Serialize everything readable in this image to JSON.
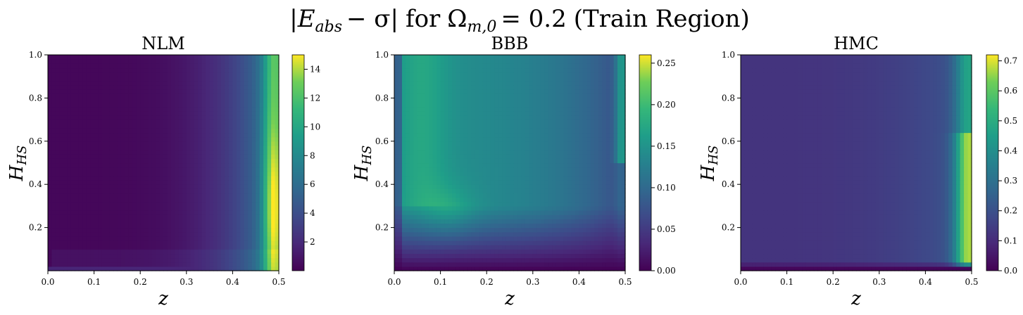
{
  "figure": {
    "title": "|Eabs − σ| for Ωm,0 = 0.2 (Train Region)",
    "title_parts": {
      "lead": "|",
      "e": "E",
      "e_sub": "abs",
      "minus_sigma": "− σ|",
      "for": "for",
      "omega": "Ω",
      "omega_sub": "m,0",
      "value": "= 0.2",
      "region": "(Train Region)"
    }
  },
  "chart_data": [
    {
      "type": "heatmap",
      "title": "NLM",
      "xlabel": "z",
      "ylabel": "HHS",
      "ylabel_main": "H",
      "ylabel_sub": "HS",
      "xlim": [
        0.0,
        0.5
      ],
      "ylim": [
        0.0,
        1.0
      ],
      "xticks": [
        "0.0",
        "0.1",
        "0.2",
        "0.3",
        "0.4",
        "0.5"
      ],
      "yticks": [
        "0.2",
        "0.4",
        "0.6",
        "0.8",
        "1.0"
      ],
      "colormap": "viridis",
      "colorbar": {
        "min": 0.0,
        "max": 15.0,
        "ticks": [
          "2",
          "4",
          "6",
          "8",
          "10",
          "12",
          "14"
        ]
      }
    },
    {
      "type": "heatmap",
      "title": "BBB",
      "xlabel": "z",
      "ylabel": "HHS",
      "ylabel_main": "H",
      "ylabel_sub": "HS",
      "xlim": [
        0.0,
        0.5
      ],
      "ylim": [
        0.0,
        1.0
      ],
      "xticks": [
        "0.0",
        "0.1",
        "0.2",
        "0.3",
        "0.4",
        "0.5"
      ],
      "yticks": [
        "0.2",
        "0.4",
        "0.6",
        "0.8",
        "1.0"
      ],
      "colormap": "viridis",
      "colorbar": {
        "min": 0.0,
        "max": 0.26,
        "ticks": [
          "0.00",
          "0.05",
          "0.10",
          "0.15",
          "0.20",
          "0.25"
        ]
      }
    },
    {
      "type": "heatmap",
      "title": "HMC",
      "xlabel": "z",
      "ylabel": "HHS",
      "ylabel_main": "H",
      "ylabel_sub": "HS",
      "xlim": [
        0.0,
        0.5
      ],
      "ylim": [
        0.0,
        1.0
      ],
      "xticks": [
        "0.0",
        "0.1",
        "0.2",
        "0.3",
        "0.4",
        "0.5"
      ],
      "yticks": [
        "0.2",
        "0.4",
        "0.6",
        "0.8",
        "1.0"
      ],
      "colormap": "viridis",
      "colorbar": {
        "min": 0.0,
        "max": 0.72,
        "ticks": [
          "0.0",
          "0.1",
          "0.2",
          "0.3",
          "0.4",
          "0.5",
          "0.6",
          "0.7"
        ]
      }
    }
  ]
}
